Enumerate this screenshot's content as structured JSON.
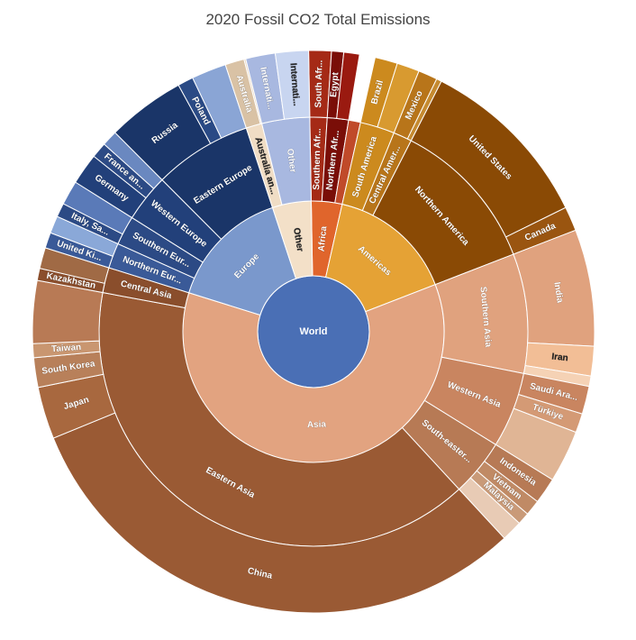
{
  "chart_data": {
    "type": "sunburst",
    "title": "2020 Fossil CO2 Total Emissions",
    "root": "World",
    "levels": [
      "region",
      "subregion",
      "country"
    ],
    "nodes": [
      {
        "region": "Africa",
        "color": "#e0652c",
        "value": 3.8,
        "children": [
          {
            "name": "Southern Africa",
            "color": "#a52a16",
            "value": 1.3,
            "children": [
              {
                "name": "South Africa",
                "color": "#a52a16",
                "value": 1.3
              }
            ]
          },
          {
            "name": "Northern Africa",
            "color": "#7a0e08",
            "value": 1.6,
            "children": [
              {
                "name": "Egypt",
                "color": "#7a0e08",
                "value": 0.7
              },
              {
                "name": "",
                "color": "#9a1a10",
                "value": 0.9
              }
            ]
          },
          {
            "name": "",
            "color": "#c04a2a",
            "value": 0.9,
            "children": []
          }
        ]
      },
      {
        "region": "Americas",
        "color": "#e5a235",
        "value": 15.6,
        "children": [
          {
            "name": "South America",
            "color": "#cc8a1e",
            "value": 2.6,
            "children": [
              {
                "name": "Brazil",
                "color": "#cc8a1e",
                "value": 1.3
              },
              {
                "name": "",
                "color": "#d89a30",
                "value": 1.3
              }
            ]
          },
          {
            "name": "Central America",
            "color": "#b8751a",
            "value": 1.4,
            "children": [
              {
                "name": "Mexico",
                "color": "#b8751a",
                "value": 1.1
              },
              {
                "name": "",
                "color": "#c58a30",
                "value": 0.3
              }
            ]
          },
          {
            "name": "Northern America",
            "color": "#8a4a05",
            "value": 11.6,
            "children": [
              {
                "name": "United States",
                "color": "#8a4a05",
                "value": 10.2
              },
              {
                "name": "Canada",
                "color": "#9a5510",
                "value": 1.4
              }
            ]
          }
        ]
      },
      {
        "region": "Asia",
        "color": "#e2a380",
        "value": 60.7,
        "children": [
          {
            "name": "Southern Asia",
            "color": "#e0a27e",
            "value": 9.0,
            "children": [
              {
                "name": "India",
                "color": "#e0a27e",
                "value": 6.7
              },
              {
                "name": "Iran",
                "color": "#f2be96",
                "value": 1.7
              },
              {
                "name": "",
                "color": "#f5d2b5",
                "value": 0.6
              }
            ]
          },
          {
            "name": "Western Asia",
            "color": "#c98560",
            "value": 5.7,
            "children": [
              {
                "name": "Saudi Arabia",
                "color": "#c98560",
                "value": 1.6
              },
              {
                "name": "Türkiye",
                "color": "#d49a75",
                "value": 1.1
              },
              {
                "name": "",
                "color": "#e0b595",
                "value": 3.0
              }
            ]
          },
          {
            "name": "South-eastern Asia",
            "color": "#b77a55",
            "value": 4.3,
            "children": [
              {
                "name": "Indonesia",
                "color": "#b77a55",
                "value": 1.5
              },
              {
                "name": "Vietnam",
                "color": "#c08a65",
                "value": 0.9
              },
              {
                "name": "Malaysia",
                "color": "#c99a78",
                "value": 0.7
              },
              {
                "name": "",
                "color": "#e8cbb5",
                "value": 1.2
              }
            ]
          },
          {
            "name": "Eastern Asia",
            "color": "#9a5a34",
            "value": 39.8,
            "children": [
              {
                "name": "China",
                "color": "#9a5a34",
                "value": 30.7
              },
              {
                "name": "Japan",
                "color": "#a8683f",
                "value": 3.0
              },
              {
                "name": "South Korea",
                "color": "#b8805a",
                "value": 1.7
              },
              {
                "name": "Taiwan",
                "color": "#c99670",
                "value": 0.8
              },
              {
                "name": "",
                "color": "#b87a55",
                "value": 3.6
              }
            ]
          },
          {
            "name": "Central Asia",
            "color": "#8a4e2c",
            "value": 1.9,
            "children": [
              {
                "name": "Kazakhstan",
                "color": "#8a4e2c",
                "value": 0.7
              },
              {
                "name": "",
                "color": "#a06a45",
                "value": 1.2
              }
            ]
          }
        ]
      },
      {
        "region": "Europe",
        "color": "#7a98cc",
        "value": 15.1,
        "children": [
          {
            "name": "Northern Europe",
            "color": "#3a5a98",
            "value": 1.9,
            "children": [
              {
                "name": "United Kingdom",
                "color": "#3a5a98",
                "value": 0.9
              },
              {
                "name": "",
                "color": "#8aa8d8",
                "value": 1.0
              }
            ]
          },
          {
            "name": "Southern Europe",
            "color": "#2c4a85",
            "value": 2.2,
            "children": [
              {
                "name": "Italy, San Marino and the Holy See",
                "color": "#2c4a85",
                "value": 0.8
              },
              {
                "name": "",
                "color": "#5a7ab8",
                "value": 1.4
              }
            ]
          },
          {
            "name": "Western Europe",
            "color": "#22407a",
            "value": 3.6,
            "children": [
              {
                "name": "Germany",
                "color": "#22407a",
                "value": 1.8
              },
              {
                "name": "France and Monaco",
                "color": "#2c4a85",
                "value": 0.9
              },
              {
                "name": "",
                "color": "#6a88c0",
                "value": 0.9
              }
            ]
          },
          {
            "name": "Eastern Europe",
            "color": "#1a3568",
            "value": 7.4,
            "children": [
              {
                "name": "Russia",
                "color": "#1a3568",
                "value": 4.5
              },
              {
                "name": "Poland",
                "color": "#2a4a85",
                "value": 0.9
              },
              {
                "name": "",
                "color": "#8aa5d5",
                "value": 2.0
              }
            ]
          }
        ]
      },
      {
        "region": "Other",
        "color": "#f3e0c8",
        "value": 4.8,
        "children": [
          {
            "name": "Australia and New Zealand",
            "color": "#f0ddc5",
            "value": 1.2,
            "children": [
              {
                "name": "Australia",
                "color": "#d9c2a5",
                "value": 1.1
              },
              {
                "name": "",
                "color": "#e8d6bf",
                "value": 0.1
              }
            ]
          },
          {
            "name": "Other",
            "color": "#a8b8e0",
            "value": 3.6,
            "children": [
              {
                "name": "International Aviation",
                "color": "#a8b8e0",
                "value": 1.7
              },
              {
                "name": "International Shipping",
                "color": "#c8d5f0",
                "value": 1.9
              }
            ]
          }
        ]
      }
    ]
  }
}
